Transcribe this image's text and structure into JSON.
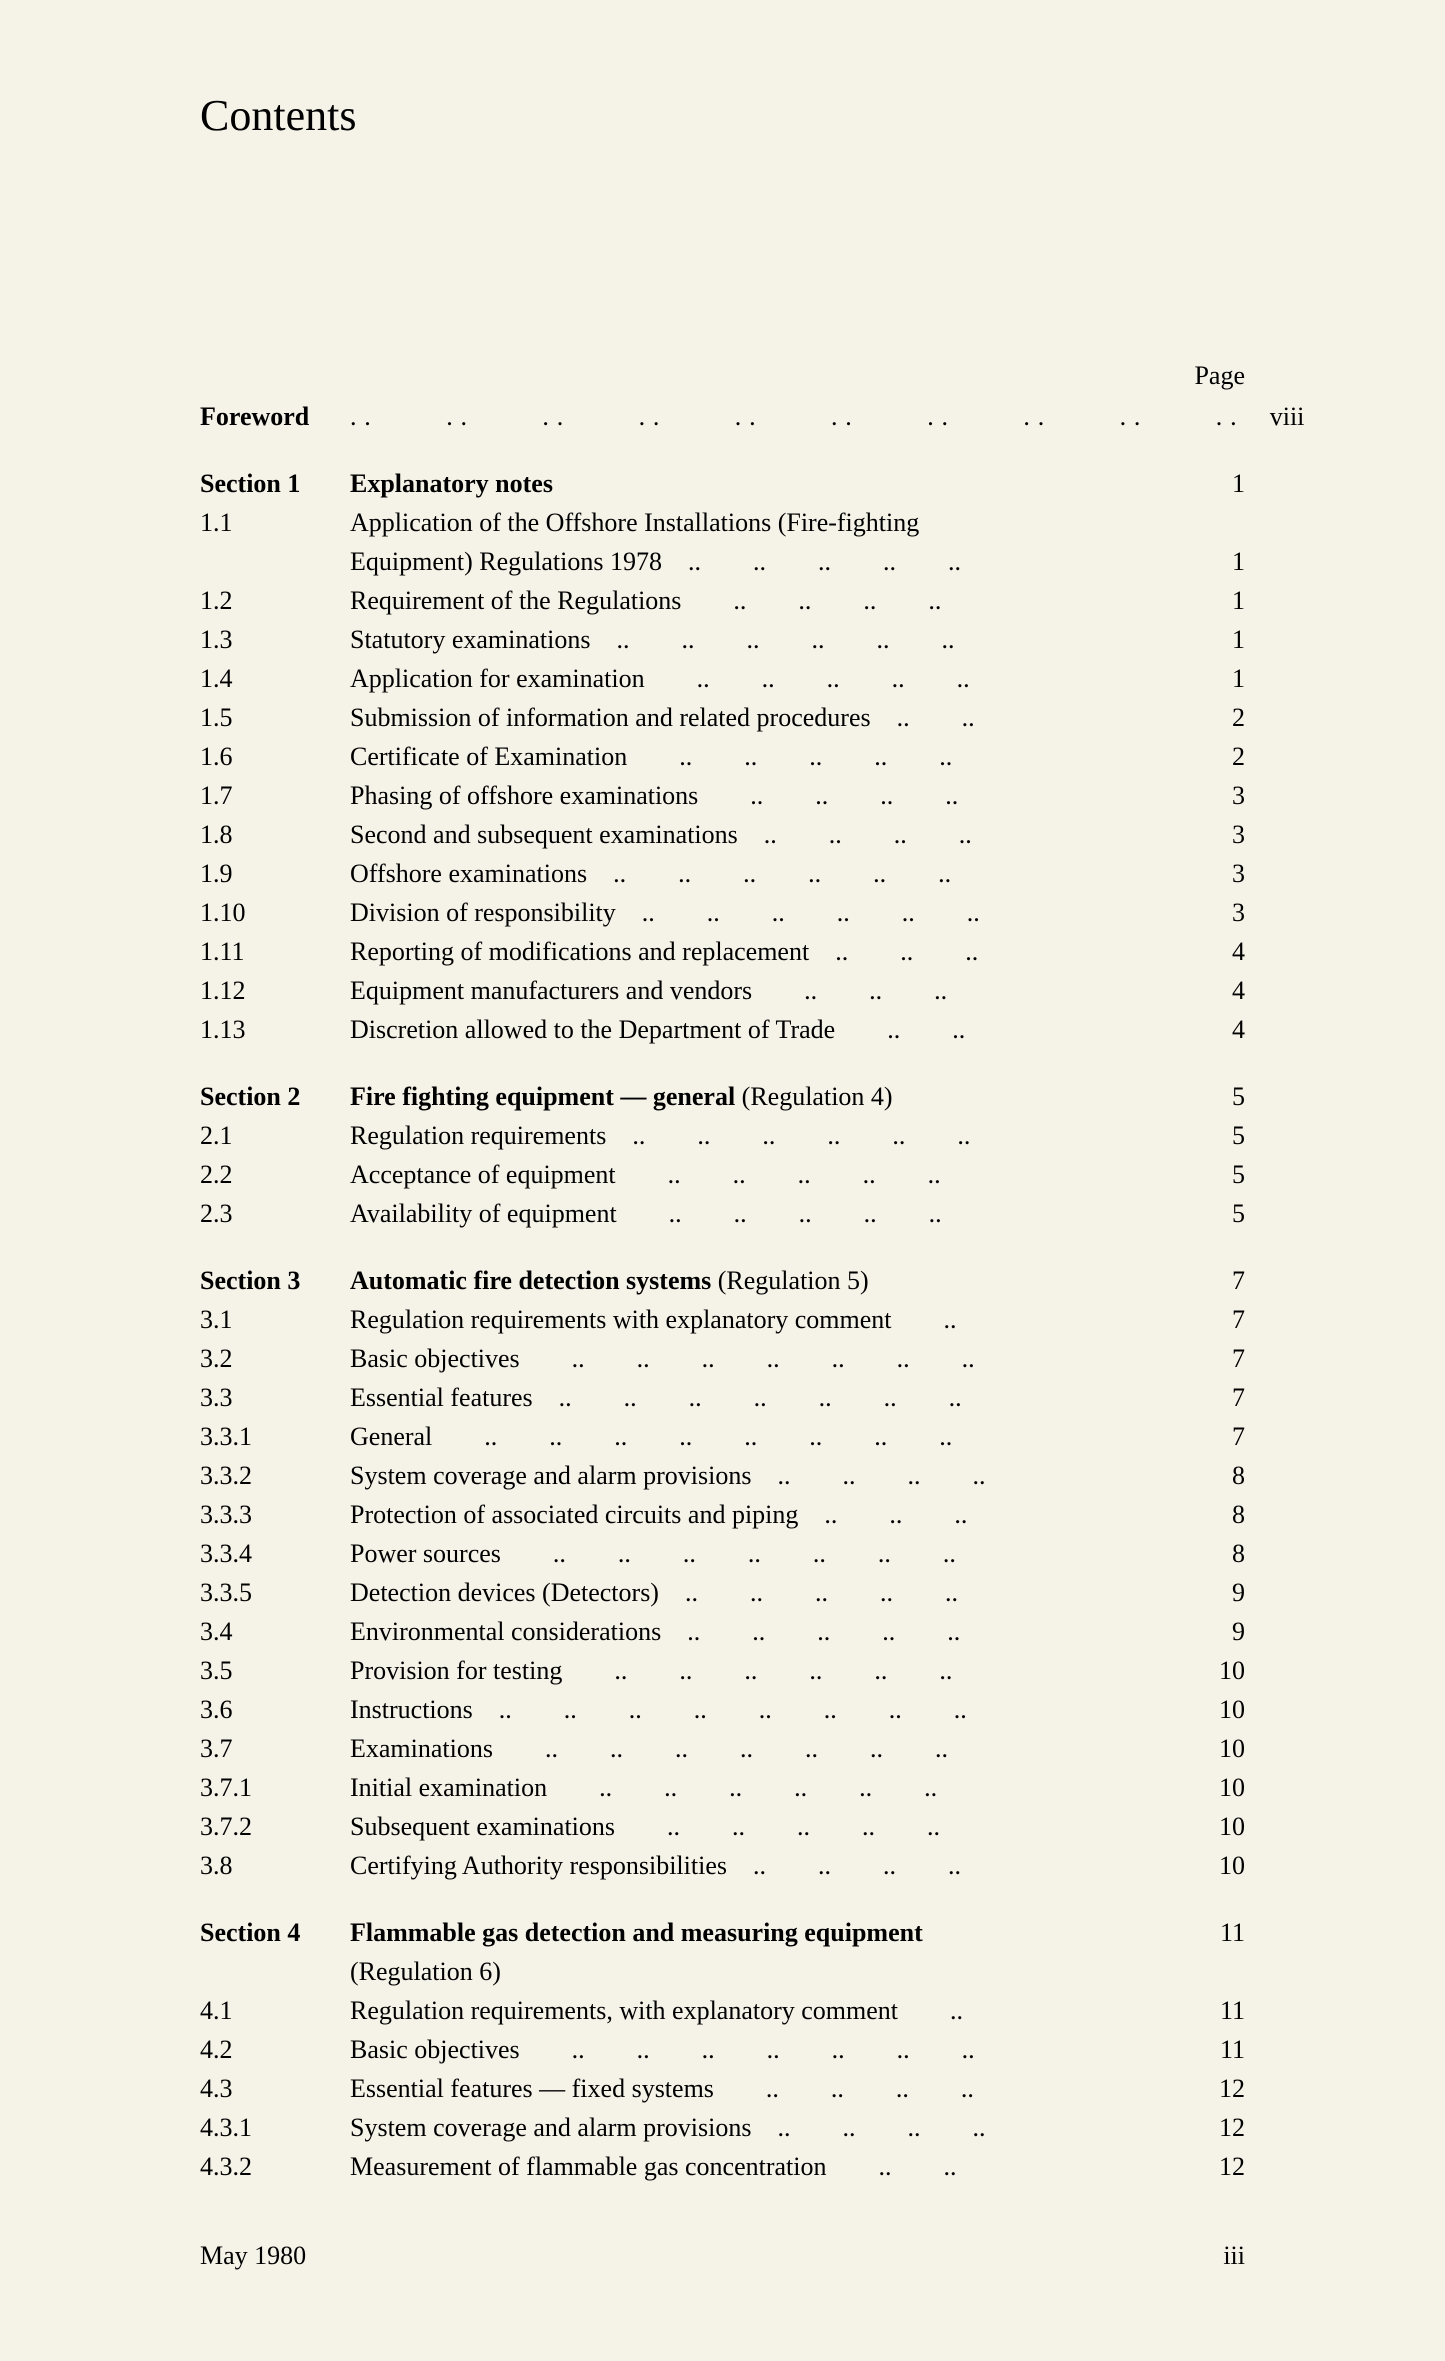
{
  "title": "Contents",
  "page_label": "Page",
  "foreword": {
    "label": "Foreword",
    "dots": "..  ..  ..  ..  ..  ..  ..  ..  ..  ..",
    "page": "viii"
  },
  "sections": [
    {
      "label": "Section 1",
      "title_bold": "Explanatory notes",
      "title_rest": "",
      "page": "1",
      "entries": [
        {
          "num": "1.1",
          "text": "Application of the Offshore Installations (Fire-fighting",
          "cont": "Equipment) Regulations 1978 ..  ..  ..  ..  ..",
          "page": "1"
        },
        {
          "num": "1.2",
          "text": "Requirement of the Regulations  ..  ..  ..  ..",
          "page": "1"
        },
        {
          "num": "1.3",
          "text": "Statutory examinations ..  ..  ..  ..  ..  ..",
          "page": "1"
        },
        {
          "num": "1.4",
          "text": "Application for examination  ..  ..  ..  ..  ..",
          "page": "1"
        },
        {
          "num": "1.5",
          "text": "Submission of information and related procedures ..  ..",
          "page": "2"
        },
        {
          "num": "1.6",
          "text": "Certificate of Examination  ..  ..  ..  ..  ..",
          "page": "2"
        },
        {
          "num": "1.7",
          "text": "Phasing of offshore examinations  ..  ..  ..  ..",
          "page": "3"
        },
        {
          "num": "1.8",
          "text": "Second and subsequent examinations ..  ..  ..  ..",
          "page": "3"
        },
        {
          "num": "1.9",
          "text": "Offshore examinations ..  ..  ..  ..  ..  ..",
          "page": "3"
        },
        {
          "num": "1.10",
          "text": "Division of responsibility ..  ..  ..  ..  ..  ..",
          "page": "3"
        },
        {
          "num": "1.11",
          "text": "Reporting of modifications and replacement ..  ..  ..",
          "page": "4"
        },
        {
          "num": "1.12",
          "text": "Equipment manufacturers and vendors  ..  ..  ..",
          "page": "4"
        },
        {
          "num": "1.13",
          "text": "Discretion allowed to the Department of Trade  ..  ..",
          "page": "4"
        }
      ]
    },
    {
      "label": "Section 2",
      "title_bold": "Fire fighting equipment — general",
      "title_rest": " (Regulation 4)",
      "page": "5",
      "entries": [
        {
          "num": "2.1",
          "text": "Regulation requirements ..  ..  ..  ..  ..  ..",
          "page": "5"
        },
        {
          "num": "2.2",
          "text": "Acceptance of equipment  ..  ..  ..  ..  ..",
          "page": "5"
        },
        {
          "num": "2.3",
          "text": "Availability of equipment  ..  ..  ..  ..  ..",
          "page": "5"
        }
      ]
    },
    {
      "label": "Section 3",
      "title_bold": "Automatic fire detection systems",
      "title_rest": " (Regulation 5)",
      "page": "7",
      "entries": [
        {
          "num": "3.1",
          "text": "Regulation requirements with explanatory comment  ..",
          "page": "7"
        },
        {
          "num": "3.2",
          "text": "Basic objectives  ..  ..  ..  ..  ..  ..  ..",
          "page": "7"
        },
        {
          "num": "3.3",
          "text": "Essential features ..  ..  ..  ..  ..  ..  ..",
          "page": "7"
        },
        {
          "num": "3.3.1",
          "text": "General  ..  ..  ..  ..  ..  ..  ..  ..",
          "page": "7"
        },
        {
          "num": "3.3.2",
          "text": "System coverage and alarm provisions ..  ..  ..  ..",
          "page": "8"
        },
        {
          "num": "3.3.3",
          "text": "Protection of associated circuits and piping ..  ..  ..",
          "page": "8"
        },
        {
          "num": "3.3.4",
          "text": "Power sources  ..  ..  ..  ..  ..  ..  ..",
          "page": "8"
        },
        {
          "num": "3.3.5",
          "text": "Detection devices (Detectors) ..  ..  ..  ..  ..",
          "page": "9"
        },
        {
          "num": "3.4",
          "text": "Environmental considerations ..  ..  ..  ..  ..",
          "page": "9"
        },
        {
          "num": "3.5",
          "text": "Provision for testing  ..  ..  ..  ..  ..  ..",
          "page": "10"
        },
        {
          "num": "3.6",
          "text": "Instructions ..  ..  ..  ..  ..  ..  ..  ..",
          "page": "10"
        },
        {
          "num": "3.7",
          "text": "Examinations  ..  ..  ..  ..  ..  ..  ..",
          "page": "10"
        },
        {
          "num": "3.7.1",
          "text": "Initial examination  ..  ..  ..  ..  ..  ..",
          "page": "10"
        },
        {
          "num": "3.7.2",
          "text": "Subsequent examinations  ..  ..  ..  ..  ..",
          "page": "10"
        },
        {
          "num": "3.8",
          "text": "Certifying Authority responsibilities ..  ..  ..  ..",
          "page": "10"
        }
      ]
    },
    {
      "label": "Section 4",
      "title_bold": "Flammable gas detection and measuring equipment",
      "title_rest": "",
      "title_cont": "(Regulation 6)",
      "page": "11",
      "entries": [
        {
          "num": "4.1",
          "text": "Regulation requirements, with explanatory comment  ..",
          "page": "11"
        },
        {
          "num": "4.2",
          "text": "Basic objectives  ..  ..  ..  ..  ..  ..  ..",
          "page": "11"
        },
        {
          "num": "4.3",
          "text": "Essential features — fixed systems  ..  ..  ..  ..",
          "page": "12"
        },
        {
          "num": "4.3.1",
          "text": "System coverage and alarm provisions ..  ..  ..  ..",
          "page": "12"
        },
        {
          "num": "4.3.2",
          "text": "Measurement of flammable gas concentration  ..  ..",
          "page": "12"
        }
      ]
    }
  ],
  "footer": {
    "date": "May 1980",
    "page": "iii"
  }
}
